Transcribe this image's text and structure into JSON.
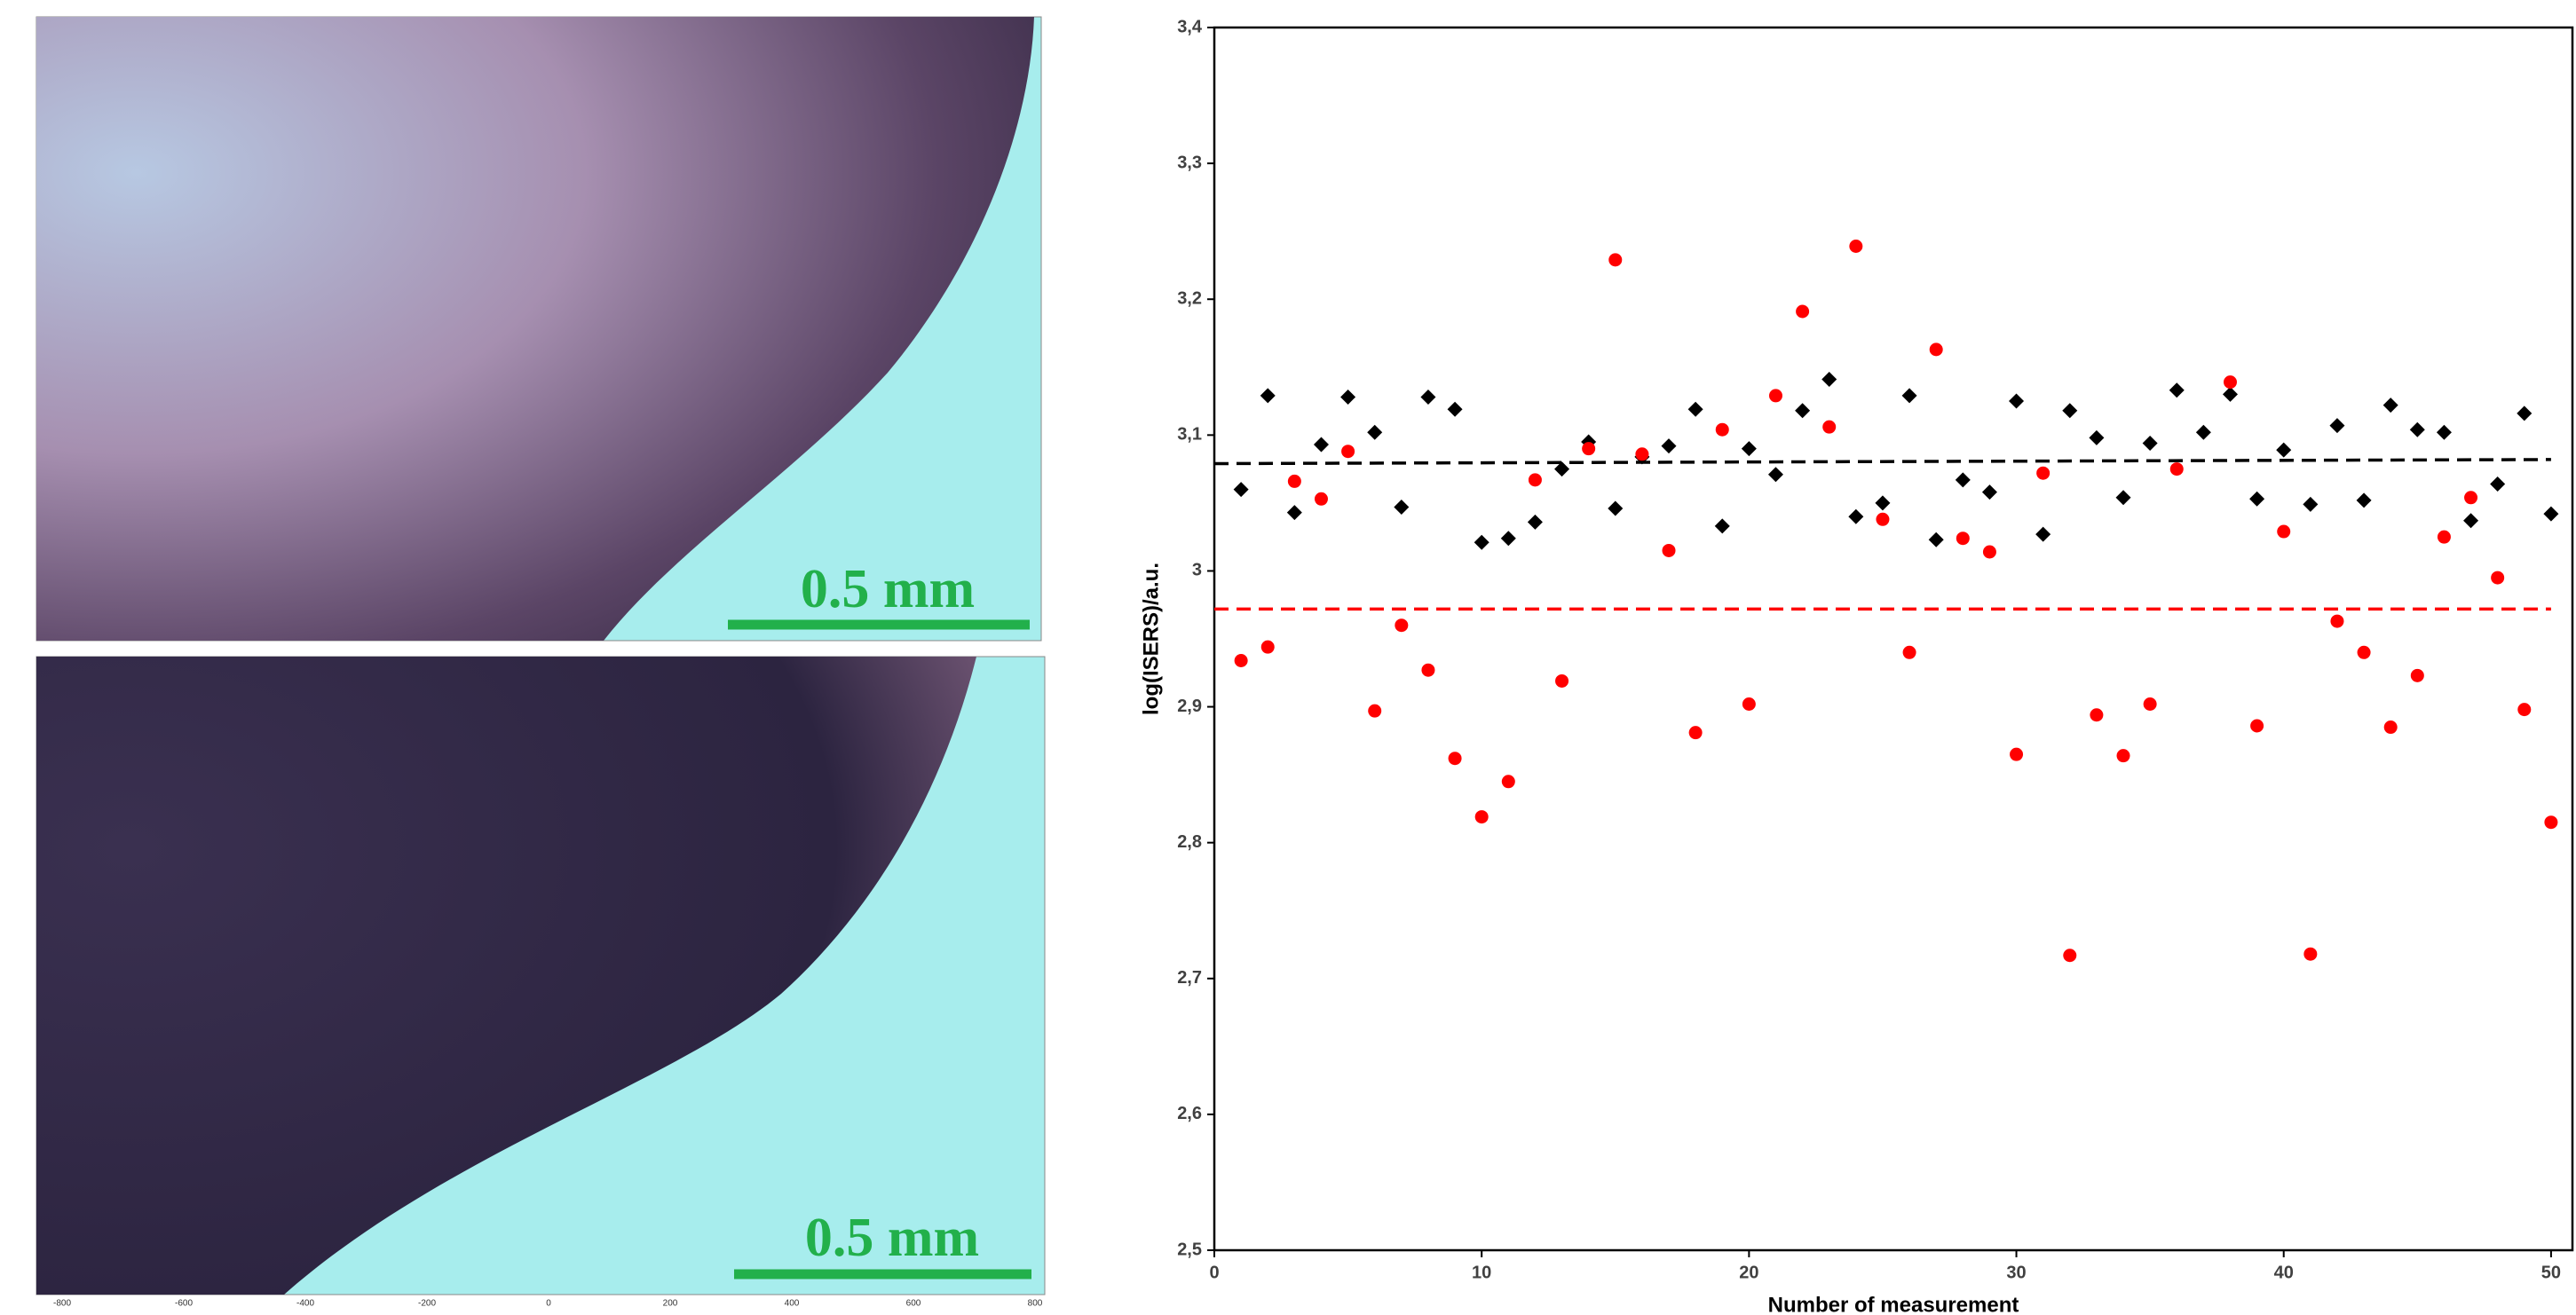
{
  "images": [
    {
      "scale_bar": "0.5 mm"
    },
    {
      "scale_bar": "0.5 mm",
      "xticks": [
        -800,
        -600,
        -400,
        -200,
        0,
        200,
        400,
        600,
        800
      ]
    }
  ],
  "chart_data": {
    "type": "scatter",
    "xlabel": "Number of measurement",
    "ylabel": "log(ISERS)/a.u.",
    "x": [
      1,
      2,
      3,
      4,
      5,
      6,
      7,
      8,
      9,
      10,
      11,
      12,
      13,
      14,
      15,
      16,
      17,
      18,
      19,
      20,
      21,
      22,
      23,
      24,
      25,
      26,
      27,
      28,
      29,
      30,
      31,
      32,
      33,
      34,
      35,
      36,
      37,
      38,
      39,
      40,
      41,
      42,
      43,
      44,
      45,
      46,
      47,
      48,
      49,
      50
    ],
    "series": [
      {
        "color": "#000000",
        "marker": "diamond",
        "values": [
          3.06,
          3.129,
          3.043,
          3.093,
          3.128,
          3.102,
          3.047,
          3.128,
          3.119,
          3.021,
          3.024,
          3.036,
          3.075,
          3.095,
          3.046,
          3.084,
          3.092,
          3.119,
          3.033,
          3.09,
          3.071,
          3.118,
          3.141,
          3.04,
          3.05,
          3.129,
          3.023,
          3.067,
          3.058,
          3.125,
          3.027,
          3.118,
          3.098,
          3.054,
          3.094,
          3.133,
          3.102,
          3.13,
          3.053,
          3.089,
          3.049,
          3.107,
          3.052,
          3.122,
          3.104,
          3.102,
          3.037,
          3.064,
          3.116,
          3.042
        ]
      },
      {
        "color": "#ff0000",
        "marker": "circle",
        "values": [
          2.934,
          2.944,
          3.066,
          3.053,
          3.088,
          2.897,
          2.96,
          2.927,
          2.862,
          2.819,
          2.845,
          3.067,
          2.919,
          3.09,
          3.229,
          3.086,
          3.015,
          2.881,
          3.104,
          2.902,
          3.129,
          3.191,
          3.106,
          3.239,
          3.038,
          2.94,
          3.163,
          3.024,
          3.014,
          2.865,
          3.072,
          2.717,
          2.894,
          2.864,
          2.902,
          3.075,
          null,
          3.139,
          2.886,
          3.029,
          2.718,
          2.963,
          2.94,
          2.885,
          2.923,
          3.025,
          3.054,
          2.995,
          2.898,
          2.815
        ]
      }
    ],
    "mean_lines": [
      {
        "color": "#000000",
        "x": [
          0,
          50
        ],
        "values": [
          3.079,
          3.082
        ]
      },
      {
        "color": "#ff0000",
        "x": [
          0,
          50
        ],
        "values": [
          2.972,
          2.972
        ]
      }
    ],
    "xlim": [
      0,
      50.8
    ],
    "xticks": [
      0,
      10,
      20,
      30,
      40,
      50
    ],
    "ylim": [
      2.5,
      3.4
    ],
    "yticks": [
      {
        "value": 2.5,
        "label": "2,5"
      },
      {
        "value": 2.6,
        "label": "2,6"
      },
      {
        "value": 2.7,
        "label": "2,7"
      },
      {
        "value": 2.8,
        "label": "2,8"
      },
      {
        "value": 2.9,
        "label": "2,9"
      },
      3,
      {
        "value": 3.1,
        "label": "3,1"
      },
      {
        "value": 3.2,
        "label": "3,2"
      },
      {
        "value": 3.3,
        "label": "3,3"
      },
      {
        "value": 3.4,
        "label": "3,4"
      }
    ],
    "grid": false
  }
}
